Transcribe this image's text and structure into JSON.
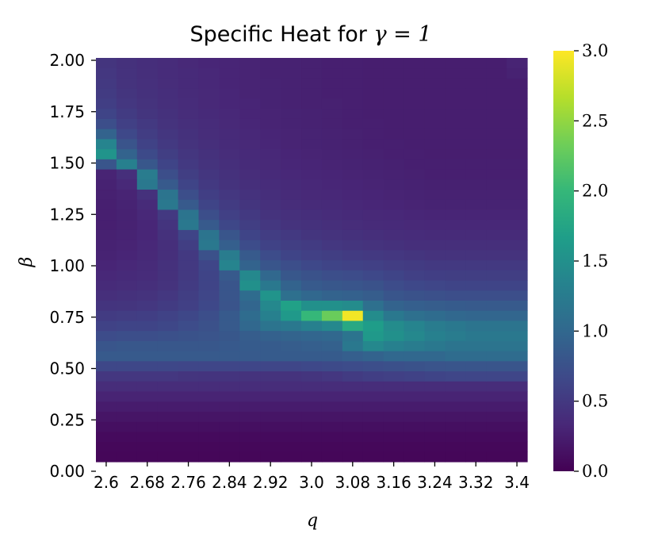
{
  "chart_data": {
    "type": "heatmap",
    "title": "Specific Heat for γ = 1",
    "title_prefix": "Specific Heat for ",
    "title_math": "γ = 1",
    "xlabel": "q",
    "ylabel": "β",
    "x_tick_labels": [
      "2.6",
      "2.68",
      "2.76",
      "2.84",
      "2.92",
      "3.0",
      "3.08",
      "3.16",
      "3.24",
      "3.32",
      "3.4"
    ],
    "y_tick_labels": [
      "0.00",
      "0.25",
      "0.50",
      "0.75",
      "1.00",
      "1.25",
      "1.50",
      "1.75",
      "2.00"
    ],
    "colorbar": {
      "ticks": [
        "0.0",
        "0.5",
        "1.0",
        "1.5",
        "2.0",
        "2.5",
        "3.0"
      ],
      "range": [
        0,
        3.0
      ],
      "colormap": "viridis"
    },
    "x_range": [
      2.6,
      3.4
    ],
    "y_range": [
      0,
      2.0
    ],
    "x_columns": 21,
    "y_rows": 40,
    "values_note_rows": "rows from beta=0 (bottom) upward, each row has 21 columns from q=2.6 to q=3.4",
    "values": [
      [
        0.05,
        0.05,
        0.05,
        0.05,
        0.05,
        0.05,
        0.05,
        0.05,
        0.05,
        0.05,
        0.05,
        0.05,
        0.05,
        0.05,
        0.05,
        0.05,
        0.05,
        0.05,
        0.05,
        0.05,
        0.05
      ],
      [
        0.06,
        0.06,
        0.06,
        0.06,
        0.06,
        0.06,
        0.06,
        0.06,
        0.06,
        0.06,
        0.06,
        0.06,
        0.06,
        0.06,
        0.06,
        0.06,
        0.06,
        0.06,
        0.06,
        0.06,
        0.06
      ],
      [
        0.08,
        0.08,
        0.08,
        0.08,
        0.08,
        0.08,
        0.08,
        0.08,
        0.08,
        0.08,
        0.08,
        0.08,
        0.08,
        0.08,
        0.08,
        0.08,
        0.08,
        0.08,
        0.08,
        0.08,
        0.08
      ],
      [
        0.12,
        0.12,
        0.12,
        0.12,
        0.12,
        0.12,
        0.12,
        0.12,
        0.12,
        0.12,
        0.12,
        0.12,
        0.12,
        0.12,
        0.12,
        0.12,
        0.12,
        0.12,
        0.12,
        0.12,
        0.12
      ],
      [
        0.17,
        0.17,
        0.17,
        0.17,
        0.17,
        0.17,
        0.17,
        0.17,
        0.17,
        0.17,
        0.17,
        0.17,
        0.17,
        0.17,
        0.17,
        0.17,
        0.17,
        0.17,
        0.17,
        0.17,
        0.17
      ],
      [
        0.23,
        0.23,
        0.23,
        0.23,
        0.23,
        0.23,
        0.23,
        0.23,
        0.23,
        0.23,
        0.23,
        0.23,
        0.23,
        0.23,
        0.23,
        0.23,
        0.23,
        0.23,
        0.23,
        0.23,
        0.23
      ],
      [
        0.3,
        0.3,
        0.3,
        0.3,
        0.3,
        0.3,
        0.3,
        0.3,
        0.3,
        0.3,
        0.3,
        0.3,
        0.3,
        0.3,
        0.3,
        0.3,
        0.3,
        0.3,
        0.3,
        0.3,
        0.3
      ],
      [
        0.38,
        0.38,
        0.38,
        0.38,
        0.38,
        0.38,
        0.38,
        0.38,
        0.38,
        0.38,
        0.38,
        0.38,
        0.38,
        0.38,
        0.38,
        0.38,
        0.38,
        0.38,
        0.38,
        0.38,
        0.38
      ],
      [
        0.48,
        0.48,
        0.48,
        0.48,
        0.46,
        0.45,
        0.45,
        0.44,
        0.44,
        0.44,
        0.46,
        0.48,
        0.52,
        0.56,
        0.58,
        0.6,
        0.62,
        0.64,
        0.64,
        0.64,
        0.64
      ],
      [
        0.65,
        0.65,
        0.65,
        0.65,
        0.64,
        0.64,
        0.64,
        0.64,
        0.64,
        0.64,
        0.66,
        0.68,
        0.7,
        0.72,
        0.74,
        0.76,
        0.78,
        0.8,
        0.8,
        0.8,
        0.8
      ],
      [
        0.85,
        0.85,
        0.85,
        0.85,
        0.85,
        0.85,
        0.85,
        0.85,
        0.86,
        0.86,
        0.86,
        0.86,
        0.9,
        0.95,
        1.0,
        1.0,
        1.0,
        1.05,
        1.05,
        1.05,
        1.05
      ],
      [
        0.8,
        0.82,
        0.82,
        0.82,
        0.82,
        0.82,
        0.84,
        0.86,
        0.86,
        0.88,
        0.9,
        0.92,
        1.2,
        1.4,
        1.3,
        1.25,
        1.2,
        1.15,
        1.15,
        1.15,
        1.15
      ],
      [
        0.7,
        0.72,
        0.72,
        0.74,
        0.76,
        0.78,
        0.82,
        0.88,
        0.92,
        0.96,
        0.98,
        1.0,
        1.15,
        1.6,
        1.5,
        1.4,
        1.3,
        1.25,
        1.2,
        1.2,
        1.2
      ],
      [
        0.6,
        0.62,
        0.62,
        0.65,
        0.7,
        0.75,
        0.85,
        1.0,
        1.15,
        1.2,
        1.3,
        1.4,
        1.8,
        1.65,
        1.45,
        1.35,
        1.25,
        1.2,
        1.15,
        1.15,
        1.15
      ],
      [
        0.52,
        0.54,
        0.56,
        0.6,
        0.65,
        0.72,
        0.85,
        1.05,
        1.3,
        1.6,
        2.0,
        2.3,
        2.95,
        1.45,
        1.2,
        1.1,
        1.05,
        1.0,
        0.98,
        0.98,
        0.98
      ],
      [
        0.45,
        0.46,
        0.48,
        0.52,
        0.58,
        0.66,
        0.78,
        0.98,
        1.4,
        1.7,
        1.5,
        1.5,
        1.45,
        1.1,
        0.95,
        0.9,
        0.88,
        0.86,
        0.85,
        0.85,
        0.85
      ],
      [
        0.4,
        0.42,
        0.44,
        0.48,
        0.55,
        0.64,
        0.8,
        1.05,
        1.55,
        1.1,
        1.0,
        0.95,
        0.92,
        0.88,
        0.8,
        0.76,
        0.74,
        0.72,
        0.72,
        0.72,
        0.72
      ],
      [
        0.36,
        0.38,
        0.4,
        0.44,
        0.52,
        0.62,
        0.8,
        1.5,
        1.2,
        0.95,
        0.85,
        0.82,
        0.8,
        0.76,
        0.7,
        0.66,
        0.64,
        0.62,
        0.62,
        0.62,
        0.62
      ],
      [
        0.33,
        0.35,
        0.37,
        0.42,
        0.5,
        0.62,
        0.85,
        1.4,
        1.0,
        0.82,
        0.76,
        0.72,
        0.7,
        0.66,
        0.62,
        0.58,
        0.56,
        0.55,
        0.55,
        0.55,
        0.55
      ],
      [
        0.31,
        0.33,
        0.36,
        0.42,
        0.5,
        0.64,
        1.35,
        0.95,
        0.8,
        0.72,
        0.66,
        0.62,
        0.6,
        0.58,
        0.54,
        0.52,
        0.5,
        0.5,
        0.5,
        0.5,
        0.5
      ],
      [
        0.29,
        0.31,
        0.34,
        0.4,
        0.5,
        0.75,
        1.25,
        0.85,
        0.7,
        0.62,
        0.58,
        0.55,
        0.52,
        0.5,
        0.48,
        0.46,
        0.44,
        0.44,
        0.44,
        0.44,
        0.44
      ],
      [
        0.28,
        0.3,
        0.33,
        0.4,
        0.55,
        1.2,
        0.9,
        0.7,
        0.6,
        0.55,
        0.52,
        0.48,
        0.46,
        0.44,
        0.42,
        0.4,
        0.4,
        0.4,
        0.4,
        0.4,
        0.4
      ],
      [
        0.27,
        0.29,
        0.32,
        0.42,
        0.62,
        1.15,
        0.8,
        0.62,
        0.54,
        0.5,
        0.46,
        0.44,
        0.42,
        0.4,
        0.38,
        0.37,
        0.36,
        0.36,
        0.36,
        0.36,
        0.36
      ],
      [
        0.26,
        0.28,
        0.32,
        0.45,
        1.2,
        0.85,
        0.65,
        0.55,
        0.48,
        0.44,
        0.42,
        0.4,
        0.38,
        0.36,
        0.35,
        0.34,
        0.33,
        0.33,
        0.33,
        0.33,
        0.33
      ],
      [
        0.26,
        0.28,
        0.33,
        0.5,
        1.15,
        0.72,
        0.58,
        0.5,
        0.44,
        0.41,
        0.39,
        0.37,
        0.35,
        0.34,
        0.33,
        0.32,
        0.31,
        0.31,
        0.31,
        0.31,
        0.31
      ],
      [
        0.26,
        0.29,
        0.36,
        1.2,
        0.85,
        0.62,
        0.52,
        0.46,
        0.41,
        0.38,
        0.36,
        0.35,
        0.33,
        0.32,
        0.31,
        0.3,
        0.29,
        0.29,
        0.29,
        0.29,
        0.29
      ],
      [
        0.27,
        0.3,
        0.42,
        1.15,
        0.72,
        0.56,
        0.48,
        0.43,
        0.39,
        0.36,
        0.34,
        0.33,
        0.32,
        0.31,
        0.3,
        0.29,
        0.28,
        0.28,
        0.28,
        0.28,
        0.28
      ],
      [
        0.28,
        0.34,
        1.2,
        0.85,
        0.62,
        0.5,
        0.44,
        0.4,
        0.37,
        0.35,
        0.33,
        0.32,
        0.31,
        0.3,
        0.29,
        0.28,
        0.27,
        0.27,
        0.27,
        0.27,
        0.27
      ],
      [
        0.3,
        0.4,
        1.25,
        0.72,
        0.55,
        0.47,
        0.42,
        0.38,
        0.35,
        0.33,
        0.32,
        0.31,
        0.3,
        0.29,
        0.28,
        0.27,
        0.26,
        0.26,
        0.26,
        0.26,
        0.26
      ],
      [
        0.8,
        1.3,
        0.82,
        0.62,
        0.5,
        0.44,
        0.4,
        0.36,
        0.34,
        0.32,
        0.31,
        0.3,
        0.29,
        0.28,
        0.27,
        0.26,
        0.26,
        0.26,
        0.26,
        0.26,
        0.26
      ],
      [
        1.55,
        0.95,
        0.68,
        0.55,
        0.47,
        0.42,
        0.38,
        0.35,
        0.33,
        0.31,
        0.3,
        0.29,
        0.28,
        0.27,
        0.26,
        0.26,
        0.25,
        0.25,
        0.25,
        0.25,
        0.25
      ],
      [
        1.35,
        0.78,
        0.6,
        0.5,
        0.44,
        0.4,
        0.36,
        0.34,
        0.32,
        0.3,
        0.29,
        0.28,
        0.27,
        0.26,
        0.26,
        0.25,
        0.25,
        0.25,
        0.25,
        0.25,
        0.25
      ],
      [
        0.95,
        0.66,
        0.54,
        0.47,
        0.42,
        0.38,
        0.35,
        0.33,
        0.31,
        0.3,
        0.29,
        0.28,
        0.27,
        0.26,
        0.25,
        0.25,
        0.25,
        0.25,
        0.25,
        0.25,
        0.25
      ],
      [
        0.72,
        0.58,
        0.5,
        0.44,
        0.4,
        0.37,
        0.34,
        0.32,
        0.3,
        0.29,
        0.28,
        0.27,
        0.26,
        0.26,
        0.25,
        0.25,
        0.25,
        0.25,
        0.25,
        0.25,
        0.25
      ],
      [
        0.62,
        0.52,
        0.46,
        0.42,
        0.38,
        0.35,
        0.33,
        0.31,
        0.3,
        0.29,
        0.28,
        0.27,
        0.26,
        0.25,
        0.25,
        0.25,
        0.25,
        0.25,
        0.25,
        0.25,
        0.25
      ],
      [
        0.56,
        0.48,
        0.44,
        0.4,
        0.37,
        0.34,
        0.32,
        0.31,
        0.29,
        0.28,
        0.27,
        0.27,
        0.26,
        0.25,
        0.25,
        0.25,
        0.25,
        0.25,
        0.25,
        0.25,
        0.25
      ],
      [
        0.52,
        0.46,
        0.42,
        0.39,
        0.36,
        0.34,
        0.32,
        0.3,
        0.29,
        0.28,
        0.27,
        0.26,
        0.26,
        0.25,
        0.25,
        0.25,
        0.25,
        0.25,
        0.25,
        0.25,
        0.25
      ],
      [
        0.5,
        0.44,
        0.41,
        0.38,
        0.35,
        0.33,
        0.31,
        0.3,
        0.29,
        0.28,
        0.27,
        0.26,
        0.26,
        0.25,
        0.25,
        0.25,
        0.25,
        0.25,
        0.25,
        0.25,
        0.25
      ],
      [
        0.48,
        0.43,
        0.4,
        0.37,
        0.35,
        0.33,
        0.31,
        0.3,
        0.28,
        0.28,
        0.27,
        0.26,
        0.26,
        0.25,
        0.25,
        0.25,
        0.25,
        0.25,
        0.25,
        0.25,
        0.28
      ],
      [
        0.46,
        0.42,
        0.39,
        0.37,
        0.34,
        0.32,
        0.31,
        0.3,
        0.28,
        0.28,
        0.27,
        0.26,
        0.26,
        0.25,
        0.25,
        0.25,
        0.25,
        0.25,
        0.25,
        0.25,
        0.3
      ]
    ]
  }
}
